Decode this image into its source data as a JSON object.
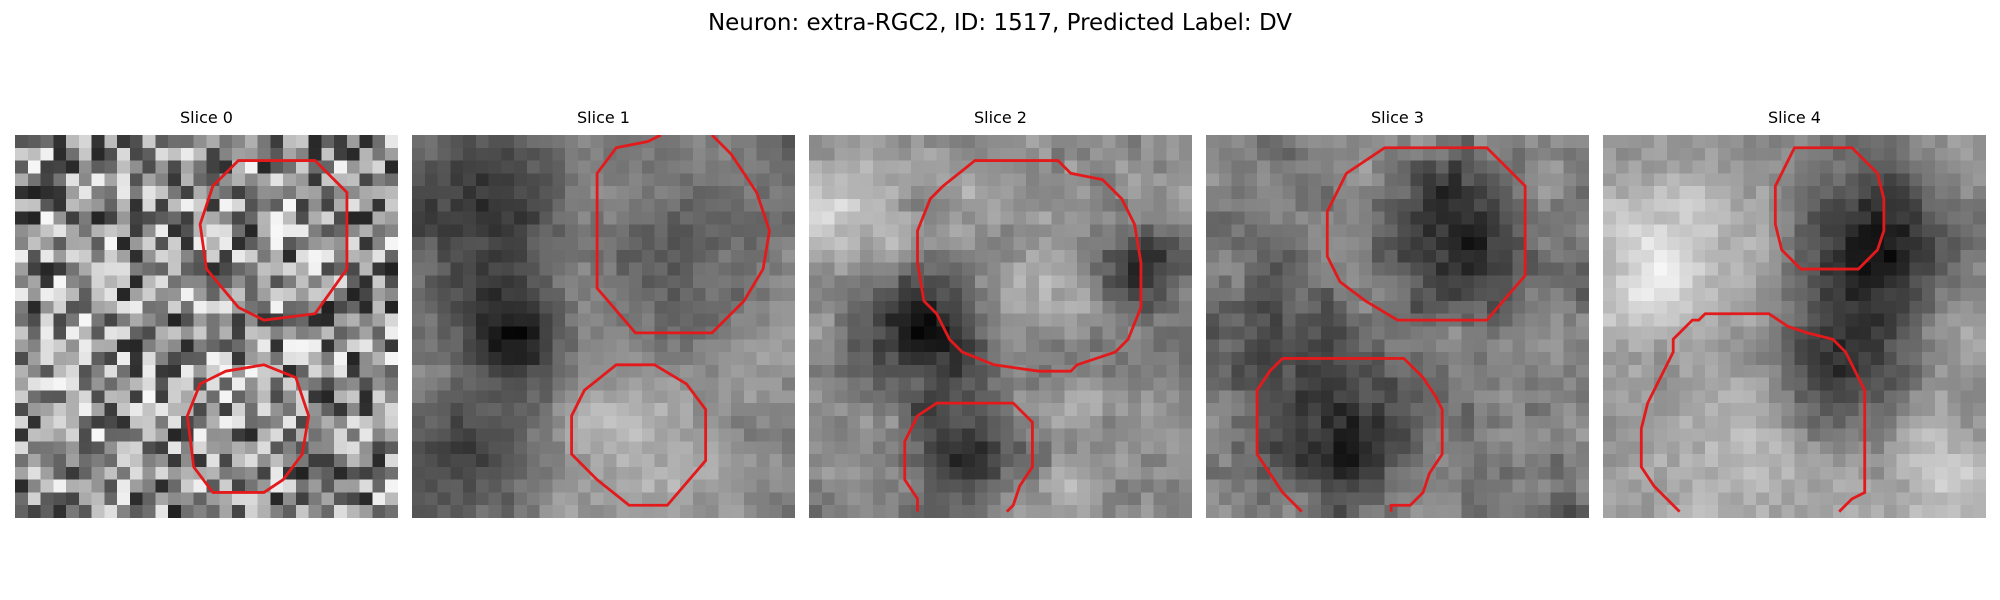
{
  "figure": {
    "title": "Neuron: extra-RGC2, ID: 1517, Predicted Label: DV"
  },
  "panels": [
    {
      "title": "Slice 0"
    },
    {
      "title": "Slice 1"
    },
    {
      "title": "Slice 2"
    },
    {
      "title": "Slice 3"
    },
    {
      "title": "Slice 4"
    }
  ],
  "colors": {
    "contour": "#e31a1c",
    "image_background": "#808080"
  }
}
